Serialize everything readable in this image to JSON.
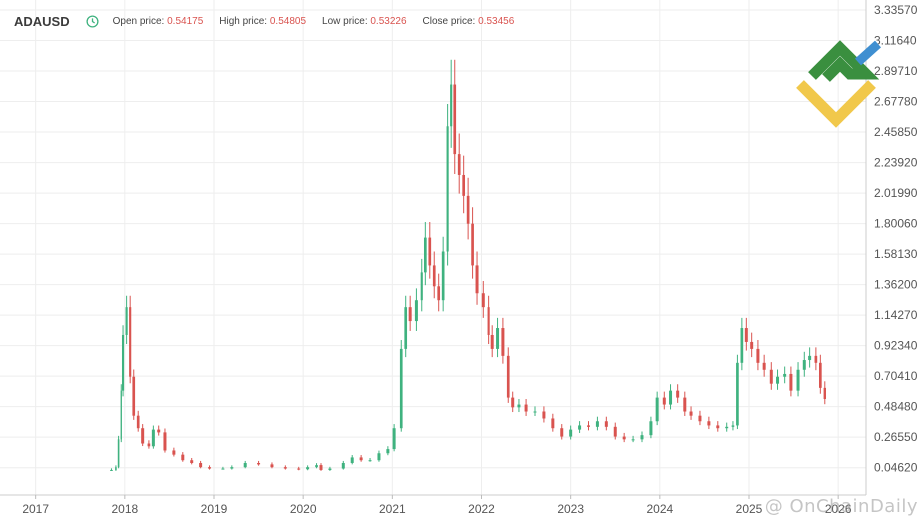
{
  "header": {
    "symbol": "ADAUSD",
    "open_label": "Open price:",
    "open_value": "0.54175",
    "high_label": "High price:",
    "high_value": "0.54805",
    "low_label": "Low price:",
    "low_value": "0.53226",
    "close_label": "Close price:",
    "close_value": "0.53456"
  },
  "watermark": "@ OnChainDaily",
  "colors": {
    "up": "#3fb27f",
    "down": "#d9534f",
    "logo_green": "#3a8f3f",
    "logo_yellow": "#f1c84b",
    "logo_blue": "#3f8fd1"
  },
  "chart_data": {
    "type": "candlestick",
    "title": "ADAUSD",
    "x_ticks": [
      "2017",
      "2018",
      "2019",
      "2020",
      "2021",
      "2022",
      "2023",
      "2024",
      "2025",
      "2026"
    ],
    "y_ticks": [
      "3.33570",
      "3.11640",
      "2.89710",
      "2.67780",
      "2.45850",
      "2.23920",
      "2.01990",
      "1.80060",
      "1.58130",
      "1.36200",
      "1.14270",
      "0.92340",
      "0.70410",
      "0.48480",
      "0.26550",
      "0.04620"
    ],
    "ylim": [
      -0.15,
      3.3357
    ],
    "xlim": [
      2016.6,
      2026.2
    ],
    "grid": true,
    "series": [
      {
        "x": 2017.85,
        "y": 0.03
      },
      {
        "x": 2017.9,
        "y": 0.05
      },
      {
        "x": 2017.93,
        "y": 0.25
      },
      {
        "x": 2017.96,
        "y": 0.6
      },
      {
        "x": 2017.98,
        "y": 1.0
      },
      {
        "x": 2018.02,
        "y": 1.2
      },
      {
        "x": 2018.06,
        "y": 0.7
      },
      {
        "x": 2018.1,
        "y": 0.42
      },
      {
        "x": 2018.15,
        "y": 0.33
      },
      {
        "x": 2018.2,
        "y": 0.22
      },
      {
        "x": 2018.27,
        "y": 0.2
      },
      {
        "x": 2018.32,
        "y": 0.32
      },
      {
        "x": 2018.38,
        "y": 0.3
      },
      {
        "x": 2018.45,
        "y": 0.17
      },
      {
        "x": 2018.55,
        "y": 0.14
      },
      {
        "x": 2018.65,
        "y": 0.1
      },
      {
        "x": 2018.75,
        "y": 0.08
      },
      {
        "x": 2018.85,
        "y": 0.05
      },
      {
        "x": 2018.95,
        "y": 0.04
      },
      {
        "x": 2019.1,
        "y": 0.04
      },
      {
        "x": 2019.2,
        "y": 0.05
      },
      {
        "x": 2019.35,
        "y": 0.08
      },
      {
        "x": 2019.5,
        "y": 0.07
      },
      {
        "x": 2019.65,
        "y": 0.05
      },
      {
        "x": 2019.8,
        "y": 0.04
      },
      {
        "x": 2019.95,
        "y": 0.035
      },
      {
        "x": 2020.05,
        "y": 0.05
      },
      {
        "x": 2020.15,
        "y": 0.065
      },
      {
        "x": 2020.2,
        "y": 0.03
      },
      {
        "x": 2020.3,
        "y": 0.04
      },
      {
        "x": 2020.45,
        "y": 0.08
      },
      {
        "x": 2020.55,
        "y": 0.12
      },
      {
        "x": 2020.65,
        "y": 0.1
      },
      {
        "x": 2020.75,
        "y": 0.1
      },
      {
        "x": 2020.85,
        "y": 0.15
      },
      {
        "x": 2020.95,
        "y": 0.18
      },
      {
        "x": 2021.02,
        "y": 0.33
      },
      {
        "x": 2021.1,
        "y": 0.9
      },
      {
        "x": 2021.15,
        "y": 1.2
      },
      {
        "x": 2021.2,
        "y": 1.1
      },
      {
        "x": 2021.27,
        "y": 1.25
      },
      {
        "x": 2021.33,
        "y": 1.45
      },
      {
        "x": 2021.37,
        "y": 1.7
      },
      {
        "x": 2021.42,
        "y": 1.5
      },
      {
        "x": 2021.47,
        "y": 1.35
      },
      {
        "x": 2021.52,
        "y": 1.25
      },
      {
        "x": 2021.57,
        "y": 1.6
      },
      {
        "x": 2021.62,
        "y": 2.5
      },
      {
        "x": 2021.66,
        "y": 2.8
      },
      {
        "x": 2021.7,
        "y": 2.3
      },
      {
        "x": 2021.75,
        "y": 2.15
      },
      {
        "x": 2021.8,
        "y": 2.0
      },
      {
        "x": 2021.85,
        "y": 1.8
      },
      {
        "x": 2021.9,
        "y": 1.5
      },
      {
        "x": 2021.95,
        "y": 1.3
      },
      {
        "x": 2022.02,
        "y": 1.2
      },
      {
        "x": 2022.08,
        "y": 1.0
      },
      {
        "x": 2022.12,
        "y": 0.9
      },
      {
        "x": 2022.18,
        "y": 1.05
      },
      {
        "x": 2022.24,
        "y": 0.85
      },
      {
        "x": 2022.3,
        "y": 0.55
      },
      {
        "x": 2022.35,
        "y": 0.48
      },
      {
        "x": 2022.42,
        "y": 0.5
      },
      {
        "x": 2022.5,
        "y": 0.45
      },
      {
        "x": 2022.6,
        "y": 0.45
      },
      {
        "x": 2022.7,
        "y": 0.4
      },
      {
        "x": 2022.8,
        "y": 0.33
      },
      {
        "x": 2022.9,
        "y": 0.27
      },
      {
        "x": 2023.0,
        "y": 0.32
      },
      {
        "x": 2023.1,
        "y": 0.35
      },
      {
        "x": 2023.2,
        "y": 0.34
      },
      {
        "x": 2023.3,
        "y": 0.38
      },
      {
        "x": 2023.4,
        "y": 0.34
      },
      {
        "x": 2023.5,
        "y": 0.27
      },
      {
        "x": 2023.6,
        "y": 0.25
      },
      {
        "x": 2023.7,
        "y": 0.25
      },
      {
        "x": 2023.8,
        "y": 0.28
      },
      {
        "x": 2023.9,
        "y": 0.38
      },
      {
        "x": 2023.97,
        "y": 0.55
      },
      {
        "x": 2024.05,
        "y": 0.5
      },
      {
        "x": 2024.12,
        "y": 0.6
      },
      {
        "x": 2024.2,
        "y": 0.55
      },
      {
        "x": 2024.28,
        "y": 0.45
      },
      {
        "x": 2024.35,
        "y": 0.42
      },
      {
        "x": 2024.45,
        "y": 0.38
      },
      {
        "x": 2024.55,
        "y": 0.35
      },
      {
        "x": 2024.65,
        "y": 0.33
      },
      {
        "x": 2024.75,
        "y": 0.34
      },
      {
        "x": 2024.82,
        "y": 0.35
      },
      {
        "x": 2024.87,
        "y": 0.8
      },
      {
        "x": 2024.92,
        "y": 1.05
      },
      {
        "x": 2024.97,
        "y": 0.95
      },
      {
        "x": 2025.03,
        "y": 0.9
      },
      {
        "x": 2025.1,
        "y": 0.8
      },
      {
        "x": 2025.17,
        "y": 0.75
      },
      {
        "x": 2025.25,
        "y": 0.65
      },
      {
        "x": 2025.32,
        "y": 0.7
      },
      {
        "x": 2025.4,
        "y": 0.72
      },
      {
        "x": 2025.47,
        "y": 0.6
      },
      {
        "x": 2025.55,
        "y": 0.75
      },
      {
        "x": 2025.62,
        "y": 0.82
      },
      {
        "x": 2025.68,
        "y": 0.85
      },
      {
        "x": 2025.75,
        "y": 0.8
      },
      {
        "x": 2025.8,
        "y": 0.62
      },
      {
        "x": 2025.85,
        "y": 0.54
      }
    ]
  }
}
